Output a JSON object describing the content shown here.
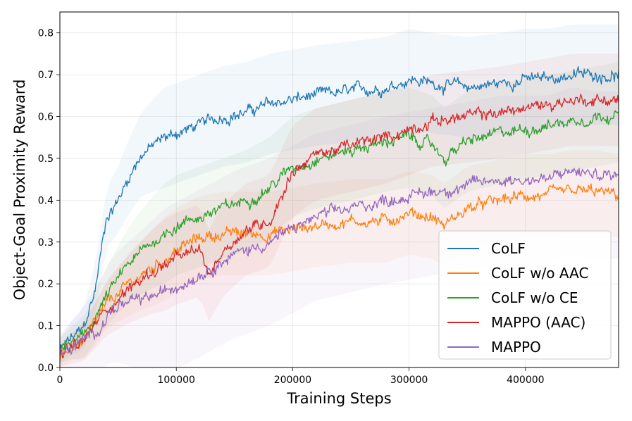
{
  "chart_data": {
    "type": "line",
    "title": "",
    "xlabel": "Training Steps",
    "ylabel": "Object-Goal Proximity Reward",
    "xlim": [
      0,
      480000
    ],
    "ylim": [
      0.0,
      0.85
    ],
    "grid": true,
    "legend_position": "bottom-right",
    "xticks": [
      0,
      100000,
      200000,
      300000,
      400000
    ],
    "xtick_labels": [
      "0",
      "100000",
      "200000",
      "300000",
      "400000"
    ],
    "yticks": [
      0.0,
      0.1,
      0.2,
      0.3,
      0.4,
      0.5,
      0.6,
      0.7,
      0.8
    ],
    "ytick_labels": [
      "0.0",
      "0.1",
      "0.2",
      "0.3",
      "0.4",
      "0.5",
      "0.6",
      "0.7",
      "0.8"
    ],
    "series": [
      {
        "name": "CoLF",
        "color": "#1f77b4",
        "x": [
          0,
          10000,
          20000,
          30000,
          40000,
          50000,
          60000,
          70000,
          80000,
          90000,
          100000,
          120000,
          140000,
          160000,
          180000,
          200000,
          220000,
          250000,
          280000,
          300000,
          320000,
          350000,
          380000,
          400000,
          420000,
          440000,
          460000,
          480000
        ],
        "y": [
          0.04,
          0.07,
          0.09,
          0.18,
          0.36,
          0.4,
          0.46,
          0.51,
          0.53,
          0.55,
          0.56,
          0.58,
          0.6,
          0.61,
          0.63,
          0.64,
          0.65,
          0.66,
          0.67,
          0.69,
          0.68,
          0.67,
          0.68,
          0.69,
          0.69,
          0.7,
          0.7,
          0.7
        ],
        "band": 0.12
      },
      {
        "name": "CoLF w/o AAC",
        "color": "#ff7f0e",
        "x": [
          0,
          10000,
          20000,
          30000,
          40000,
          60000,
          80000,
          100000,
          120000,
          140000,
          160000,
          180000,
          200000,
          220000,
          250000,
          280000,
          300000,
          320000,
          330000,
          350000,
          380000,
          400000,
          420000,
          440000,
          460000,
          480000
        ],
        "y": [
          0.02,
          0.05,
          0.06,
          0.1,
          0.15,
          0.2,
          0.24,
          0.28,
          0.31,
          0.32,
          0.32,
          0.32,
          0.33,
          0.34,
          0.35,
          0.35,
          0.37,
          0.36,
          0.34,
          0.38,
          0.4,
          0.41,
          0.41,
          0.42,
          0.42,
          0.41
        ],
        "band": 0.1
      },
      {
        "name": "CoLF w/o CE",
        "color": "#2ca02c",
        "x": [
          0,
          10000,
          20000,
          30000,
          40000,
          50000,
          60000,
          80000,
          100000,
          120000,
          140000,
          160000,
          180000,
          200000,
          220000,
          250000,
          280000,
          300000,
          320000,
          330000,
          350000,
          380000,
          400000,
          420000,
          440000,
          460000,
          480000
        ],
        "y": [
          0.04,
          0.06,
          0.07,
          0.12,
          0.17,
          0.21,
          0.25,
          0.3,
          0.34,
          0.36,
          0.38,
          0.4,
          0.43,
          0.48,
          0.5,
          0.52,
          0.54,
          0.55,
          0.53,
          0.5,
          0.54,
          0.56,
          0.57,
          0.58,
          0.59,
          0.6,
          0.61
        ],
        "band": 0.12
      },
      {
        "name": "MAPPO (AAC)",
        "color": "#d62728",
        "x": [
          0,
          20000,
          30000,
          40000,
          60000,
          80000,
          100000,
          120000,
          128000,
          140000,
          160000,
          180000,
          200000,
          220000,
          250000,
          280000,
          300000,
          320000,
          350000,
          380000,
          400000,
          420000,
          440000,
          460000,
          480000
        ],
        "y": [
          0.03,
          0.06,
          0.1,
          0.14,
          0.19,
          0.23,
          0.26,
          0.28,
          0.22,
          0.28,
          0.33,
          0.35,
          0.47,
          0.51,
          0.53,
          0.55,
          0.57,
          0.59,
          0.6,
          0.61,
          0.62,
          0.63,
          0.64,
          0.64,
          0.64
        ],
        "band": 0.11
      },
      {
        "name": "MAPPO",
        "color": "#9467bd",
        "x": [
          0,
          20000,
          35000,
          45000,
          55000,
          70000,
          90000,
          110000,
          130000,
          150000,
          180000,
          200000,
          220000,
          250000,
          280000,
          300000,
          320000,
          340000,
          360000,
          380000,
          400000,
          420000,
          440000,
          460000,
          480000
        ],
        "y": [
          0.03,
          0.06,
          0.1,
          0.14,
          0.15,
          0.16,
          0.18,
          0.21,
          0.24,
          0.27,
          0.3,
          0.33,
          0.36,
          0.38,
          0.4,
          0.41,
          0.42,
          0.43,
          0.44,
          0.45,
          0.45,
          0.45,
          0.47,
          0.46,
          0.46
        ],
        "band": 0.2
      }
    ]
  }
}
